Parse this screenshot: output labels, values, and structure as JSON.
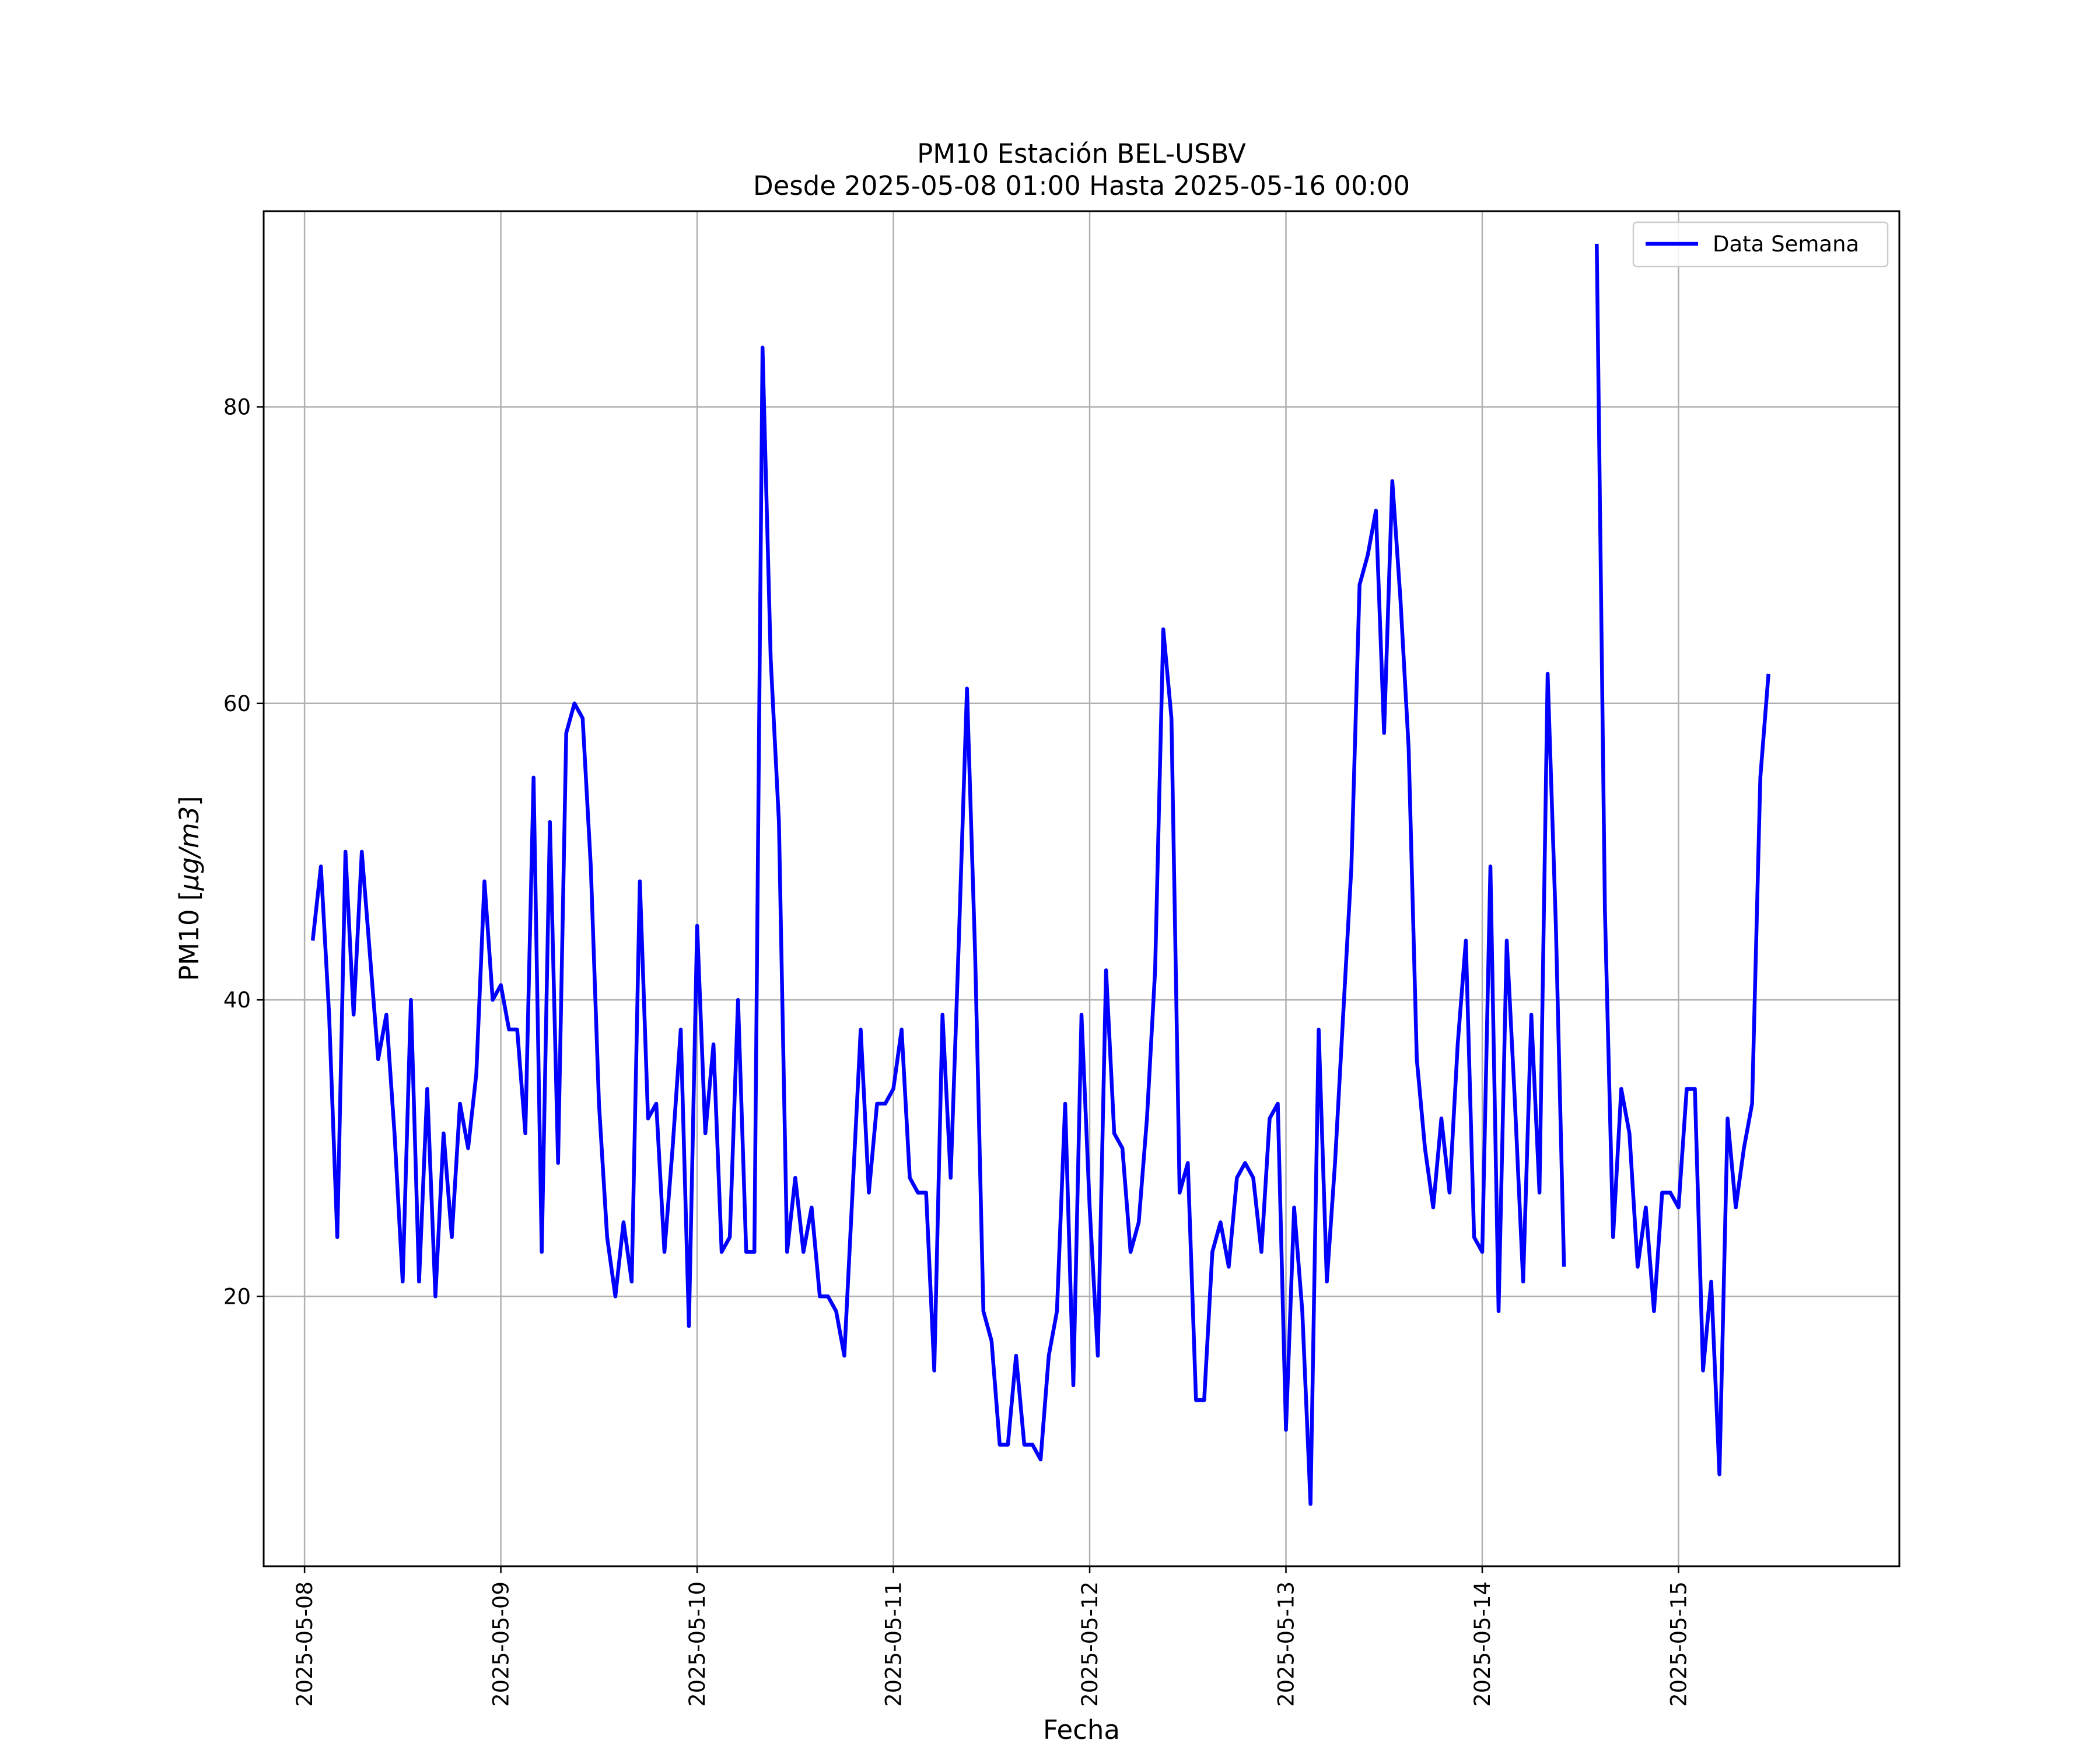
{
  "chart_data": {
    "type": "line",
    "title_line1": "PM10 Estación BEL-USBV",
    "title_line2": "Desde 2025-05-08 01:00 Hasta 2025-05-16 00:00",
    "xlabel": "Fecha",
    "ylabel_prefix": "PM10 [",
    "ylabel_unit": "μg/m3",
    "ylabel_suffix": "]",
    "x_ticks": [
      "2025-05-08",
      "2025-05-09",
      "2025-05-10",
      "2025-05-11",
      "2025-05-12",
      "2025-05-13",
      "2025-05-14",
      "2025-05-15"
    ],
    "y_ticks": [
      20,
      40,
      60,
      80
    ],
    "xlim": [
      "2025-05-07T19:00",
      "2025-05-16T03:00"
    ],
    "ylim": [
      1.8,
      93.2
    ],
    "grid": true,
    "legend_position": "top-right",
    "series_color": "#0000ff",
    "series": [
      {
        "name": "Data Semana",
        "start": "2025-05-08T01:00",
        "step_hours": 1,
        "values": [
          44,
          49,
          39,
          24,
          50,
          39,
          50,
          43,
          36,
          39,
          31,
          21,
          40,
          21,
          34,
          20,
          31,
          24,
          33,
          30,
          35,
          48,
          40,
          41,
          38,
          38,
          31,
          55,
          23,
          52,
          29,
          58,
          60,
          59,
          49,
          33,
          24,
          20,
          25,
          21,
          48,
          32,
          33,
          23,
          30,
          38,
          18,
          45,
          31,
          37,
          23,
          24,
          40,
          23,
          23,
          84,
          63,
          52,
          23,
          28,
          23,
          26,
          20,
          20,
          19,
          16,
          27,
          38,
          27,
          33,
          33,
          34,
          38,
          28,
          27,
          27,
          15,
          39,
          28,
          44,
          61,
          43,
          19,
          17,
          10,
          10,
          16,
          10,
          10,
          9,
          16,
          19,
          33,
          14,
          39,
          26,
          16,
          42,
          31,
          30,
          23,
          25,
          32,
          42,
          65,
          59,
          27,
          29,
          13,
          13,
          23,
          25,
          22,
          28,
          29,
          28,
          23,
          32,
          33,
          11,
          26,
          19,
          6,
          38,
          21,
          29,
          39,
          49,
          68,
          70,
          73,
          58,
          75,
          67,
          57,
          36,
          30,
          26,
          32,
          27,
          37,
          44,
          24,
          23,
          49,
          19,
          44,
          33,
          21,
          39,
          27,
          62,
          45,
          22,
          null,
          null,
          null,
          91,
          46,
          24,
          34,
          31,
          22,
          26,
          19,
          27,
          27,
          26,
          34,
          34,
          15,
          21,
          8,
          32,
          26,
          30,
          33,
          55,
          62
        ]
      }
    ]
  }
}
